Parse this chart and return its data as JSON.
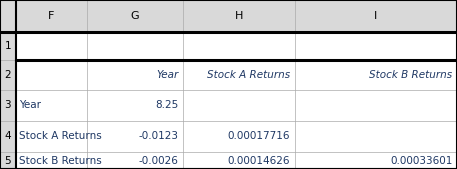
{
  "col_headers": [
    "F",
    "G",
    "H",
    "I"
  ],
  "row_numbers": [
    "1",
    "2",
    "3",
    "4",
    "5"
  ],
  "header_bg": "#d9d9d9",
  "cell_bg": "#ffffff",
  "text_color": "#1f3864",
  "table_data": [
    [
      "",
      "",
      "",
      ""
    ],
    [
      "",
      "Year",
      "Stock A Returns",
      "Stock B Returns"
    ],
    [
      "Year",
      "8.25",
      "",
      ""
    ],
    [
      "Stock A Returns",
      "-0.0123",
      "0.00017716",
      ""
    ],
    [
      "Stock B Returns",
      "-0.0026",
      "0.00014626",
      "0.00033601"
    ]
  ],
  "col_bounds": [
    0.0,
    0.034,
    0.19,
    0.4,
    0.645,
    1.0
  ],
  "row_bounds": [
    1.0,
    0.81,
    0.645,
    0.47,
    0.285,
    0.1,
    0.0
  ],
  "fig_width": 4.57,
  "fig_height": 1.69,
  "dpi": 100
}
